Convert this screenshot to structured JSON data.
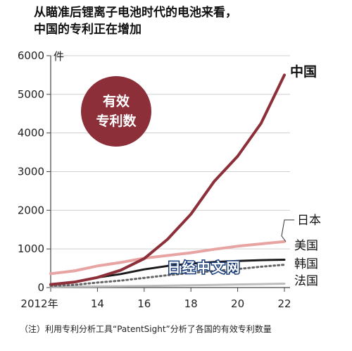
{
  "title": {
    "line1": "从瞄准后锂离子电池时代的电池来看，",
    "line2": "中国的专利正在增加"
  },
  "badge": {
    "line1": "有效",
    "line2": "专利数"
  },
  "watermark": "日经中文网",
  "footnote": "（注）利用专利分析工具“PatentSight”分析了各国的有效专利数量",
  "colors": {
    "china": "#8c2f39",
    "japan": "#e8a3a3",
    "korea": "#1a1a1a",
    "usa": "#666666",
    "france": "#bdbdbd",
    "badge": "#8c2f39"
  },
  "chart_data": {
    "type": "line",
    "unit_label": "件",
    "ylim": [
      0,
      6000
    ],
    "yticks": [
      0,
      1000,
      2000,
      3000,
      4000,
      5000,
      6000
    ],
    "xlim": [
      2012,
      2022
    ],
    "xticks": [
      2012,
      2014,
      2016,
      2018,
      2020,
      2022
    ],
    "xtick_labels": [
      "2012年",
      "14",
      "16",
      "18",
      "20",
      "22"
    ],
    "series": [
      {
        "name": "中国",
        "key": "china",
        "style": "solid",
        "width": 4,
        "x": [
          2012,
          2013,
          2014,
          2015,
          2016,
          2017,
          2018,
          2019,
          2020,
          2021,
          2022
        ],
        "y": [
          80,
          140,
          260,
          450,
          750,
          1250,
          1900,
          2750,
          3400,
          4250,
          5500
        ]
      },
      {
        "name": "日本",
        "key": "japan",
        "style": "solid",
        "width": 4,
        "x": [
          2012,
          2013,
          2014,
          2015,
          2016,
          2017,
          2018,
          2019,
          2020,
          2021,
          2022
        ],
        "y": [
          360,
          430,
          560,
          650,
          760,
          830,
          900,
          990,
          1070,
          1130,
          1190
        ]
      },
      {
        "name": "美国",
        "key": "korea",
        "style": "solid",
        "width": 3,
        "x": [
          2012,
          2013,
          2014,
          2015,
          2016,
          2017,
          2018,
          2019,
          2020,
          2021,
          2022
        ],
        "y": [
          80,
          140,
          260,
          350,
          470,
          560,
          620,
          660,
          690,
          710,
          720
        ]
      },
      {
        "name": "韩国",
        "key": "usa",
        "style": "dotted",
        "width": 3,
        "x": [
          2012,
          2013,
          2014,
          2015,
          2016,
          2017,
          2018,
          2019,
          2020,
          2021,
          2022
        ],
        "y": [
          40,
          70,
          130,
          180,
          250,
          320,
          380,
          430,
          480,
          540,
          590
        ]
      },
      {
        "name": "法国",
        "key": "france",
        "style": "solid",
        "width": 3,
        "x": [
          2012,
          2013,
          2014,
          2015,
          2016,
          2017,
          2018,
          2019,
          2020,
          2021,
          2022
        ],
        "y": [
          20,
          25,
          30,
          35,
          40,
          50,
          60,
          70,
          80,
          90,
          100
        ]
      }
    ]
  }
}
